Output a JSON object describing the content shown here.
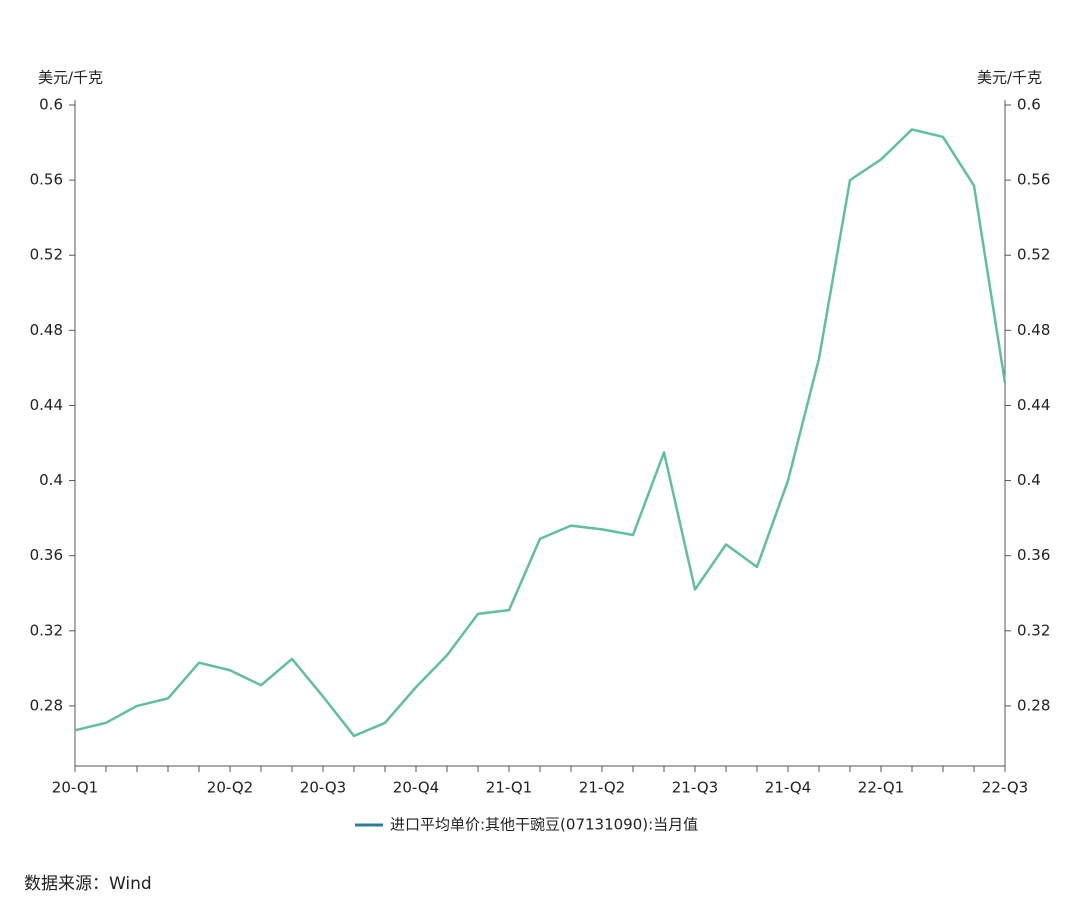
{
  "chart_data": {
    "type": "line",
    "y_label": "美元/千克",
    "y2_label": "美元/千克",
    "categories": [
      "20-Q1",
      null,
      null,
      null,
      null,
      "20-Q2",
      null,
      null,
      "20-Q3",
      null,
      null,
      "20-Q4",
      null,
      null,
      "21-Q1",
      null,
      null,
      "21-Q2",
      null,
      null,
      "21-Q3",
      null,
      null,
      "21-Q4",
      null,
      null,
      "22-Q1",
      null,
      null,
      null,
      "22-Q3"
    ],
    "series": [
      {
        "name": "进口平均单价:其他干豌豆(07131090):当月值",
        "color": "#5fbf9f",
        "values": [
          0.267,
          0.271,
          0.28,
          0.284,
          0.303,
          0.299,
          0.291,
          0.305,
          0.285,
          0.264,
          0.271,
          0.29,
          0.307,
          0.329,
          0.331,
          0.369,
          0.376,
          0.374,
          0.371,
          0.415,
          0.342,
          0.366,
          0.354,
          0.4,
          0.465,
          0.56,
          0.571,
          0.587,
          0.583,
          0.557,
          0.452
        ]
      }
    ],
    "legend_color": "#2e7d9a",
    "ylim": [
      0.248,
      0.6
    ],
    "yticks": [
      0.28,
      0.32,
      0.36,
      0.4,
      0.44,
      0.48,
      0.52,
      0.56,
      0.6
    ],
    "y2lim": [
      0.248,
      0.6
    ],
    "y2ticks": [
      0.28,
      0.32,
      0.36,
      0.4,
      0.44,
      0.48,
      0.52,
      0.56,
      0.6
    ],
    "grid": false,
    "source": "数据来源：Wind"
  }
}
